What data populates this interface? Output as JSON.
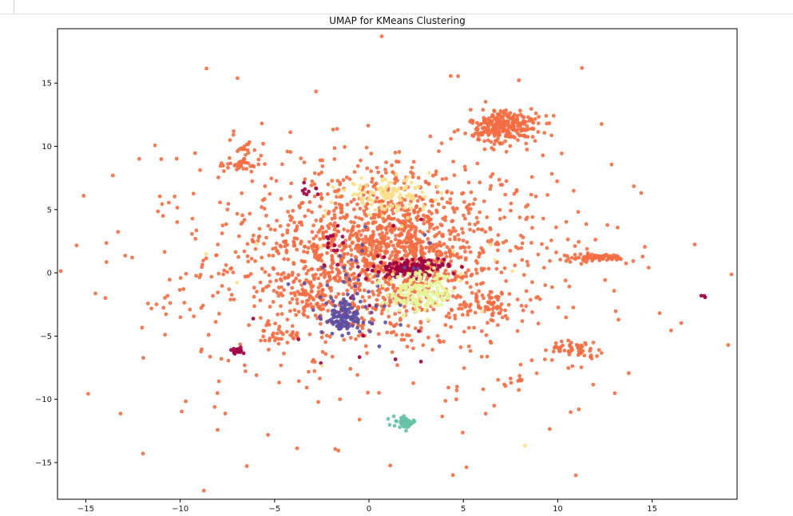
{
  "chart_data": {
    "type": "scatter",
    "title": "UMAP for KMeans Clustering",
    "xlabel": "",
    "ylabel": "",
    "xlim": [
      -16.5,
      19.5
    ],
    "ylim": [
      -17.9,
      19.3
    ],
    "xticks": [
      -15,
      -10,
      -5,
      0,
      5,
      10,
      15
    ],
    "yticks": [
      -15,
      -10,
      -5,
      0,
      5,
      10,
      15
    ],
    "grid": false,
    "legend": "none",
    "colors": {
      "orange": "#f46d43",
      "maroon": "#9e0142",
      "purple": "#5e4fa2",
      "lightyellow": "#fee08b",
      "lime": "#e6f598",
      "teal": "#66c2a5",
      "axis": "#000000"
    },
    "series": [
      {
        "color": "orange",
        "clusters": [
          {
            "cx": 0.5,
            "cy": 1.5,
            "sx": 4.5,
            "sy": 4.0,
            "n": 900
          },
          {
            "cx": 1.0,
            "cy": 2.0,
            "sx": 2.2,
            "sy": 2.2,
            "n": 600
          },
          {
            "cx": 0.0,
            "cy": 0.0,
            "sx": 7.5,
            "sy": 6.5,
            "n": 320
          },
          {
            "cx": 7.2,
            "cy": 11.6,
            "sx": 0.9,
            "sy": 0.7,
            "n": 260
          },
          {
            "cx": 12.0,
            "cy": 1.2,
            "sx": 0.9,
            "sy": 0.15,
            "n": 70
          },
          {
            "cx": 11.0,
            "cy": -6.0,
            "sx": 0.7,
            "sy": 0.3,
            "n": 50
          },
          {
            "cx": -6.8,
            "cy": 8.6,
            "sx": 0.6,
            "sy": 0.3,
            "n": 30
          },
          {
            "cx": -6.5,
            "cy": 9.6,
            "sx": 0.3,
            "sy": 0.4,
            "n": 15
          },
          {
            "cx": 6.2,
            "cy": -2.4,
            "sx": 0.8,
            "sy": 0.6,
            "n": 60
          },
          {
            "cx": 7.8,
            "cy": -8.6,
            "sx": 0.3,
            "sy": 0.3,
            "n": 12
          },
          {
            "cx": -5.0,
            "cy": -4.8,
            "sx": 0.5,
            "sy": 0.5,
            "n": 25
          },
          {
            "cx": -3.0,
            "cy": -2.0,
            "sx": 1.5,
            "sy": 1.2,
            "n": 80
          }
        ]
      },
      {
        "color": "maroon",
        "clusters": [
          {
            "cx": 2.2,
            "cy": 0.4,
            "sx": 0.9,
            "sy": 0.35,
            "n": 140
          },
          {
            "cx": -7.0,
            "cy": -6.2,
            "sx": 0.2,
            "sy": 0.15,
            "n": 18
          },
          {
            "cx": 17.7,
            "cy": -1.9,
            "sx": 0.05,
            "sy": 0.05,
            "n": 3
          },
          {
            "cx": -2.0,
            "cy": 2.5,
            "sx": 0.3,
            "sy": 0.3,
            "n": 10
          },
          {
            "cx": -3.2,
            "cy": 6.5,
            "sx": 0.3,
            "sy": 0.3,
            "n": 8
          },
          {
            "cx": 0.5,
            "cy": -1.0,
            "sx": 3.0,
            "sy": 3.0,
            "n": 25
          }
        ]
      },
      {
        "color": "purple",
        "clusters": [
          {
            "cx": -1.3,
            "cy": -3.5,
            "sx": 0.6,
            "sy": 0.7,
            "n": 110
          },
          {
            "cx": -0.5,
            "cy": -1.5,
            "sx": 1.8,
            "sy": 2.0,
            "n": 45
          }
        ]
      },
      {
        "color": "lightyellow",
        "clusters": [
          {
            "cx": 1.0,
            "cy": 6.2,
            "sx": 1.2,
            "sy": 0.6,
            "n": 110
          },
          {
            "cx": 0.0,
            "cy": 0.0,
            "sx": 5.0,
            "sy": 4.0,
            "n": 20
          }
        ]
      },
      {
        "color": "lime",
        "clusters": [
          {
            "cx": 2.8,
            "cy": -1.6,
            "sx": 0.9,
            "sy": 0.8,
            "n": 170
          }
        ]
      },
      {
        "color": "teal",
        "clusters": [
          {
            "cx": 1.9,
            "cy": -11.8,
            "sx": 0.3,
            "sy": 0.2,
            "n": 50
          }
        ]
      }
    ]
  }
}
